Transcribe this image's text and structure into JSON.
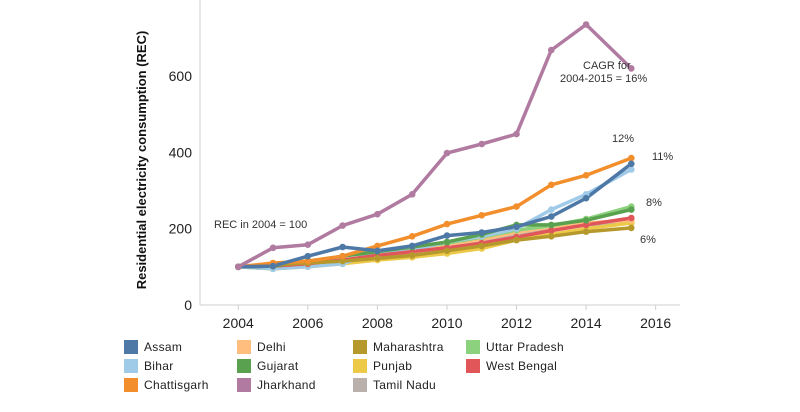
{
  "chart_data": {
    "type": "line",
    "title": "",
    "xlabel": "",
    "ylabel": "Residential electricity consumption (REC)",
    "xlim": [
      2002.9,
      2016.7
    ],
    "ylim": [
      0,
      760
    ],
    "x_ticks": [
      2004,
      2006,
      2008,
      2010,
      2012,
      2014,
      2016
    ],
    "y_ticks": [
      0,
      200,
      400,
      600
    ],
    "grid": false,
    "legend_position": "bottom",
    "x": [
      2004,
      2005,
      2006,
      2007,
      2008,
      2009,
      2010,
      2011,
      2012,
      2013,
      2014,
      2015.3
    ],
    "series": [
      {
        "name": "Tamil Nadu",
        "color": "#bab0ac",
        "values": [
          100,
          103,
          108,
          115,
          125,
          140,
          155,
          170,
          185,
          198,
          210,
          220
        ]
      },
      {
        "name": "Punjab",
        "color": "#edc948",
        "values": [
          100,
          95,
          100,
          108,
          118,
          125,
          135,
          148,
          170,
          185,
          200,
          215
        ]
      },
      {
        "name": "Delhi",
        "color": "#ffbe7d",
        "values": [
          100,
          98,
          105,
          112,
          128,
          142,
          158,
          172,
          190,
          205,
          215,
          222
        ]
      },
      {
        "name": "Uttar Pradesh",
        "color": "#8cd17d",
        "values": [
          100,
          95,
          102,
          110,
          140,
          150,
          162,
          178,
          196,
          208,
          225,
          258
        ]
      },
      {
        "name": "Bihar",
        "color": "#a0cbe8",
        "values": [
          100,
          95,
          100,
          108,
          140,
          145,
          165,
          180,
          200,
          250,
          290,
          355
        ]
      },
      {
        "name": "West Bengal",
        "color": "#e15759",
        "values": [
          100,
          102,
          108,
          118,
          130,
          140,
          150,
          162,
          178,
          195,
          210,
          228
        ]
      },
      {
        "name": "Gujarat",
        "color": "#59a14f",
        "values": [
          100,
          102,
          115,
          128,
          140,
          152,
          165,
          185,
          210,
          210,
          222,
          250
        ]
      },
      {
        "name": "Maharashtra",
        "color": "#b6992d",
        "values": [
          100,
          105,
          110,
          115,
          122,
          130,
          142,
          155,
          170,
          180,
          192,
          202
        ]
      },
      {
        "name": "Chattisgarh",
        "color": "#f28e2b",
        "values": [
          100,
          110,
          115,
          128,
          155,
          180,
          212,
          235,
          258,
          315,
          340,
          385
        ]
      },
      {
        "name": "Assam",
        "color": "#4e79a7",
        "values": [
          100,
          102,
          128,
          152,
          142,
          155,
          182,
          190,
          205,
          232,
          280,
          370
        ]
      },
      {
        "name": "Jharkhand",
        "color": "#b07aa1",
        "values": [
          100,
          150,
          158,
          208,
          238,
          290,
          398,
          422,
          448,
          668,
          735,
          620
        ]
      }
    ],
    "annotations": [
      {
        "text": "REC in 2004 = 100"
      },
      {
        "text": "CAGR for"
      },
      {
        "text": "2004-2015 = 16%"
      },
      {
        "text": "12%"
      },
      {
        "text": "11%"
      },
      {
        "text": "8%"
      },
      {
        "text": "6%"
      }
    ],
    "legend": [
      "Assam",
      "Delhi",
      "Maharashtra",
      "Uttar Pradesh",
      "Bihar",
      "Gujarat",
      "Punjab",
      "West Bengal",
      "Chattisgarh",
      "Jharkhand",
      "Tamil Nadu"
    ]
  }
}
